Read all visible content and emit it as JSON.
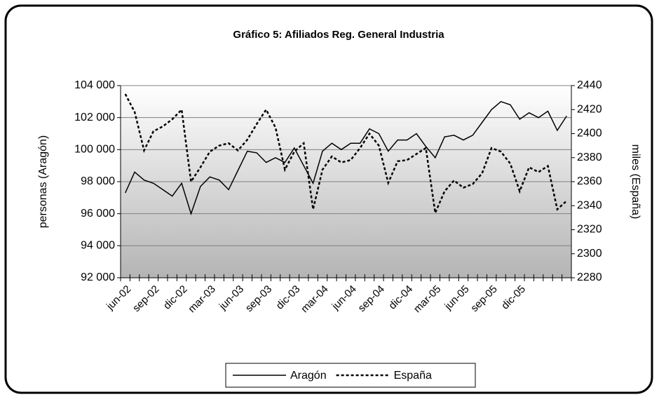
{
  "chart_data": {
    "type": "line",
    "title": "Gráfico 5: Afiliados Reg. General Industria",
    "y_label": "personas (Aragón)",
    "y2_label": "miles (España)",
    "categories": [
      "jun-02",
      null,
      null,
      "sep-02",
      null,
      null,
      "dic-02",
      null,
      null,
      "mar-03",
      null,
      null,
      "jun-03",
      null,
      null,
      "sep-03",
      null,
      null,
      "dic-03",
      null,
      null,
      "mar-04",
      null,
      null,
      "jun-04",
      null,
      null,
      "sep-04",
      null,
      null,
      "dic-04",
      null,
      null,
      "mar-05",
      null,
      null,
      "jun-05",
      null,
      null,
      "sep-05",
      null,
      null,
      "dic-05",
      null,
      null,
      null,
      null,
      null
    ],
    "series": [
      {
        "name": "Aragón",
        "color": "#000000",
        "dash": "solid",
        "values": [
          97300,
          98600,
          98100,
          97900,
          97500,
          97100,
          97900,
          96000,
          97700,
          98300,
          98100,
          97500,
          98700,
          99900,
          99800,
          99200,
          99500,
          99200,
          100100,
          99000,
          97900,
          99900,
          100400,
          100000,
          100400,
          100400,
          101300,
          101000,
          99900,
          100600,
          100600,
          101000,
          100200,
          99500,
          100800,
          100900,
          100600,
          100900,
          101700,
          102500,
          103000,
          102800,
          101900,
          102300,
          102000,
          102400,
          101200,
          102100
        ]
      },
      {
        "name": "España",
        "color": "#000000",
        "dash": "dotted",
        "axis": "y2",
        "values": [
          2433,
          2418,
          2386,
          2402,
          2406,
          2412,
          2420,
          2360,
          2372,
          2385,
          2390,
          2392,
          2386,
          2395,
          2408,
          2420,
          2405,
          2370,
          2385,
          2392,
          2337,
          2370,
          2381,
          2376,
          2378,
          2388,
          2400,
          2390,
          2359,
          2377,
          2378,
          2383,
          2388,
          2334,
          2352,
          2361,
          2355,
          2358,
          2367,
          2388,
          2385,
          2375,
          2352,
          2372,
          2368,
          2373,
          2337,
          2344
        ]
      }
    ],
    "ylim": [
      92000,
      104000
    ],
    "yticks": [
      {
        "value": 92000,
        "label": "92 000"
      },
      {
        "value": 94000,
        "label": "94 000"
      },
      {
        "value": 96000,
        "label": "96 000"
      },
      {
        "value": 98000,
        "label": "98 000"
      },
      {
        "value": 100000,
        "label": "100 000"
      },
      {
        "value": 102000,
        "label": "102 000"
      },
      {
        "value": 104000,
        "label": "104 000"
      }
    ],
    "y2lim": [
      2280,
      2440
    ],
    "y2ticks": [
      2280,
      2300,
      2320,
      2340,
      2360,
      2380,
      2400,
      2420,
      2440
    ],
    "grid": true,
    "legend": "bottom"
  }
}
